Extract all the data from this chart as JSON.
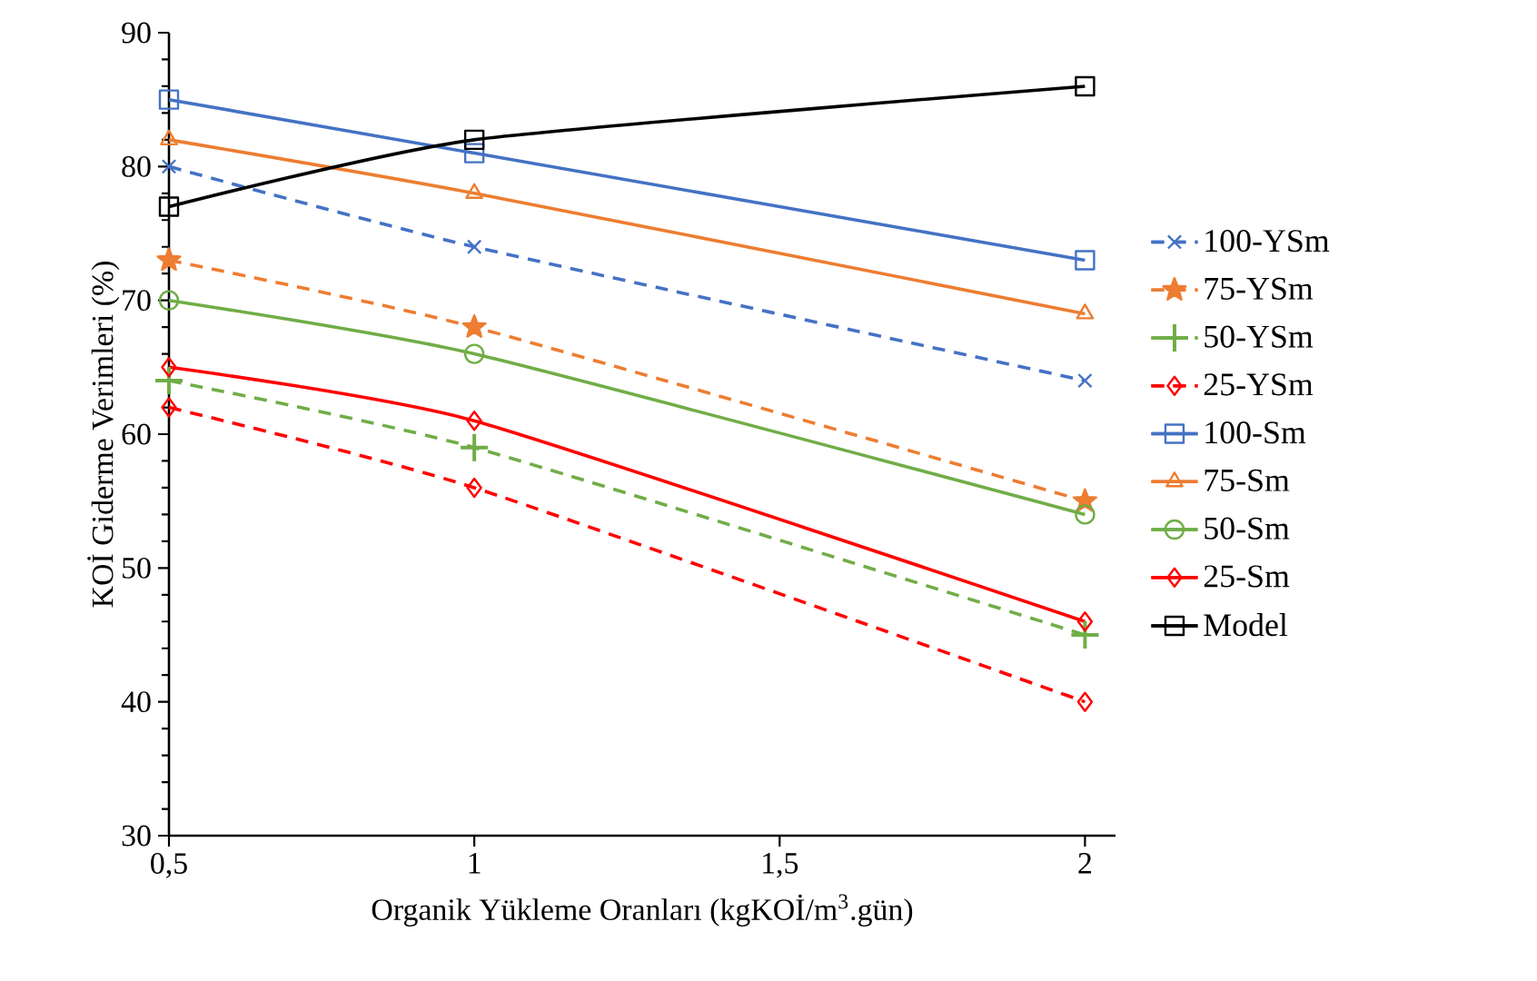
{
  "chart_data": {
    "type": "line",
    "xlabel": "Organik Yükleme Oranları (kgKOİ/m$^{3}$.gün)",
    "ylabel": "KOİ Giderme Verimleri (%)",
    "x": [
      0.5,
      1,
      2
    ],
    "xlim": [
      0.5,
      2.05
    ],
    "xticks": [
      {
        "value": 0.5,
        "label": "0,5"
      },
      1,
      {
        "value": 1.5,
        "label": "1,5"
      },
      2
    ],
    "ylim": [
      30,
      90
    ],
    "yticks": [
      30,
      40,
      50,
      60,
      70,
      80,
      90
    ],
    "grid": false,
    "legend": "right",
    "series": [
      {
        "name": "100-YSm",
        "color": "#4472c4",
        "values": [
          80,
          74,
          64
        ],
        "marker": "cross",
        "line_style": "dashed"
      },
      {
        "name": "75-YSm",
        "color": "#ed7d31",
        "values": [
          73,
          68,
          55
        ],
        "marker": "star",
        "line_style": "dashed"
      },
      {
        "name": "50-YSm",
        "color": "#70ad47",
        "values": [
          64,
          59,
          45
        ],
        "marker": "plus",
        "line_style": "dashed"
      },
      {
        "name": "25-YSm",
        "color": "#ff0000",
        "values": [
          62,
          56,
          40
        ],
        "marker": "diamond",
        "line_style": "dashed"
      },
      {
        "name": "100-Sm",
        "color": "#4472c4",
        "values": [
          85,
          81,
          73
        ],
        "marker": "square",
        "line_style": "solid"
      },
      {
        "name": "75-Sm",
        "color": "#ed7d31",
        "values": [
          82,
          78,
          69
        ],
        "marker": "triangle",
        "line_style": "solid"
      },
      {
        "name": "50-Sm",
        "color": "#70ad47",
        "values": [
          70,
          66,
          54
        ],
        "marker": "circle",
        "line_style": "solid"
      },
      {
        "name": "25-Sm",
        "color": "#ff0000",
        "values": [
          65,
          61,
          46
        ],
        "marker": "diamond",
        "line_style": "solid"
      },
      {
        "name": "Model",
        "color": "#000000",
        "values": [
          77,
          82,
          86
        ],
        "marker": "square",
        "line_style": "solid"
      }
    ]
  }
}
